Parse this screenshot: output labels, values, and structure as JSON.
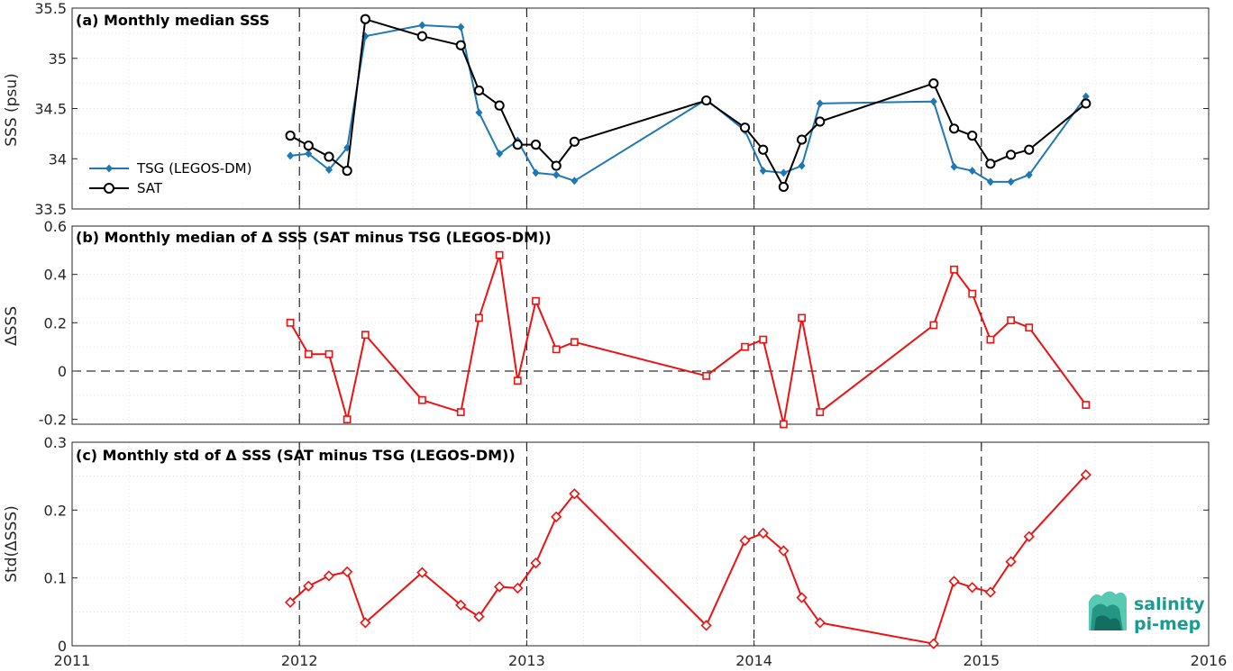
{
  "chart_data": [
    {
      "type": "line",
      "title": "(a) Monthly median SSS",
      "xlabel": "",
      "ylabel": "SSS (psu)",
      "xlim": [
        2011,
        2016
      ],
      "ylim": [
        33.5,
        35.5
      ],
      "yticks": [
        "33.5",
        "34",
        "34.5",
        "35",
        "35.5"
      ],
      "grid": true,
      "legend_position": "left-bottom",
      "series": [
        {
          "name": "TSG (LEGOS-DM)",
          "color": "#1f77b4",
          "marker": "diamond-filled",
          "x": [
            2011.96,
            2012.04,
            2012.13,
            2012.21,
            2012.29,
            2012.54,
            2012.71,
            2012.79,
            2012.88,
            2012.96,
            2013.04,
            2013.13,
            2013.21,
            2013.79,
            2013.96,
            2014.04,
            2014.13,
            2014.21,
            2014.29,
            2014.79,
            2014.88,
            2014.96,
            2015.04,
            2015.13,
            2015.21,
            2015.46
          ],
          "values": [
            34.03,
            34.05,
            33.89,
            34.11,
            35.22,
            35.33,
            35.31,
            34.46,
            34.05,
            34.18,
            33.86,
            33.84,
            33.78,
            34.59,
            34.28,
            33.88,
            33.86,
            33.93,
            34.55,
            34.57,
            33.92,
            33.88,
            33.77,
            33.77,
            33.84,
            34.62
          ]
        },
        {
          "name": "SAT",
          "color": "#000000",
          "marker": "circle-open",
          "x": [
            2011.96,
            2012.04,
            2012.13,
            2012.21,
            2012.29,
            2012.54,
            2012.71,
            2012.79,
            2012.88,
            2012.96,
            2013.04,
            2013.13,
            2013.21,
            2013.79,
            2013.96,
            2014.04,
            2014.13,
            2014.21,
            2014.29,
            2014.79,
            2014.88,
            2014.96,
            2015.04,
            2015.13,
            2015.21,
            2015.46
          ],
          "values": [
            34.23,
            34.13,
            34.02,
            33.88,
            35.39,
            35.22,
            35.13,
            34.68,
            34.53,
            34.14,
            34.14,
            33.93,
            34.17,
            34.58,
            34.31,
            34.09,
            33.72,
            34.19,
            34.37,
            34.75,
            34.3,
            34.23,
            33.95,
            34.04,
            34.09,
            34.55
          ]
        }
      ]
    },
    {
      "type": "line",
      "title": "(b) Monthly median of Δ SSS (SAT minus TSG (LEGOS-DM))",
      "xlabel": "",
      "ylabel": "ΔSSS",
      "xlim": [
        2011,
        2016
      ],
      "ylim": [
        -0.22,
        0.6
      ],
      "yticks": [
        "-0.2",
        "0",
        "0.2",
        "0.4",
        "0.6"
      ],
      "grid": true,
      "series": [
        {
          "color": "#ee1111",
          "marker": "square-open",
          "x": [
            2011.96,
            2012.04,
            2012.13,
            2012.21,
            2012.29,
            2012.54,
            2012.71,
            2012.79,
            2012.88,
            2012.96,
            2013.04,
            2013.13,
            2013.21,
            2013.79,
            2013.96,
            2014.04,
            2014.13,
            2014.21,
            2014.29,
            2014.79,
            2014.88,
            2014.96,
            2015.04,
            2015.13,
            2015.21,
            2015.46
          ],
          "values": [
            0.2,
            0.07,
            0.07,
            -0.2,
            0.15,
            -0.12,
            -0.17,
            0.22,
            0.48,
            -0.04,
            0.29,
            0.09,
            0.12,
            -0.02,
            0.1,
            0.13,
            -0.22,
            0.22,
            -0.17,
            0.19,
            0.42,
            0.32,
            0.13,
            0.21,
            0.18,
            -0.14
          ]
        }
      ]
    },
    {
      "type": "line",
      "title": "(c) Monthly std of Δ SSS (SAT minus TSG (LEGOS-DM))",
      "xlabel": "",
      "ylabel": "Std(ΔSSS)",
      "xlim": [
        2011,
        2016
      ],
      "ylim": [
        0,
        0.3
      ],
      "yticks": [
        "0",
        "0.1",
        "0.2",
        "0.3"
      ],
      "xticks": [
        "2011",
        "2012",
        "2013",
        "2014",
        "2015",
        "2016"
      ],
      "grid": true,
      "series": [
        {
          "color": "#ee1111",
          "marker": "diamond-open",
          "x": [
            2011.96,
            2012.04,
            2012.13,
            2012.21,
            2012.29,
            2012.54,
            2012.71,
            2012.79,
            2012.88,
            2012.96,
            2013.04,
            2013.13,
            2013.21,
            2013.79,
            2013.96,
            2014.04,
            2014.13,
            2014.21,
            2014.29,
            2014.79,
            2014.88,
            2014.96,
            2015.04,
            2015.13,
            2015.21,
            2015.46
          ],
          "values": [
            0.064,
            0.088,
            0.103,
            0.109,
            0.034,
            0.108,
            0.06,
            0.043,
            0.087,
            0.085,
            0.122,
            0.19,
            0.224,
            0.03,
            0.155,
            0.166,
            0.14,
            0.071,
            0.034,
            0.003,
            0.095,
            0.086,
            0.079,
            0.124,
            0.161,
            0.252
          ]
        }
      ]
    }
  ],
  "logo": {
    "line1": "salinity",
    "line2": "pi-mep"
  }
}
